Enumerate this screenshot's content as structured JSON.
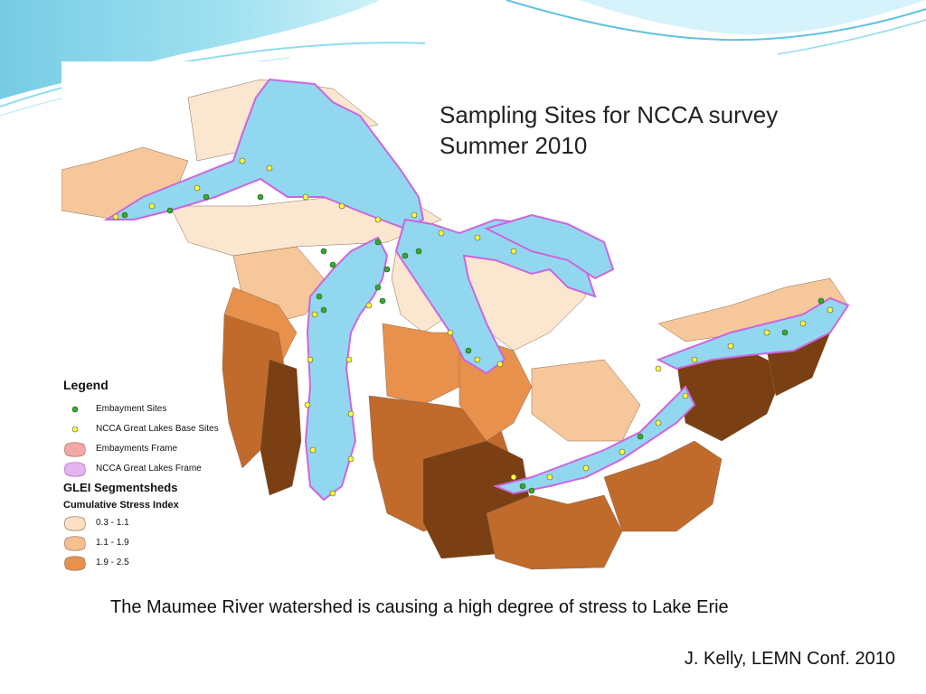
{
  "map": {
    "title_line1": "Sampling Sites for NCCA survey",
    "title_line2": "Summer 2010",
    "legend": {
      "heading": "Legend",
      "items": [
        {
          "symbol": "embayment-site-dot",
          "label": "Embayment Sites",
          "color": "#3aa832"
        },
        {
          "symbol": "base-site-dot",
          "label": "NCCA Great Lakes Base Sites",
          "color": "#ffff33"
        },
        {
          "symbol": "embayments-frame-swatch",
          "label": "Embayments Frame",
          "color": "#f4a7a7"
        },
        {
          "symbol": "great-lakes-frame-swatch",
          "label": "NCCA Great Lakes Frame",
          "color": "#e3b4f0"
        }
      ],
      "segmentsheds_heading": "GLEI Segmentsheds",
      "stress_heading": "Cumulative Stress Index",
      "stress_classes": [
        {
          "label": "0.3 - 1.1",
          "color": "#fbe0c4"
        },
        {
          "label": "1.1 - 1.9",
          "color": "#f6c18f"
        },
        {
          "label": "1.9 - 2.5",
          "color": "#e8914c"
        }
      ]
    },
    "colors": {
      "water": "#92d7f0",
      "shore_frame": "#cc66dd",
      "stress_very_low": "#fbe6d0",
      "stress_low": "#f6c79b",
      "stress_mid": "#e8914c",
      "stress_high": "#c06a2c",
      "stress_very_high": "#7a3f12",
      "embayment_site": "#3aa832",
      "base_site": "#ffff33"
    }
  },
  "caption": "The Maumee River watershed is causing a high degree of stress to Lake Erie",
  "credit": "J. Kelly, LEMN Conf. 2010"
}
